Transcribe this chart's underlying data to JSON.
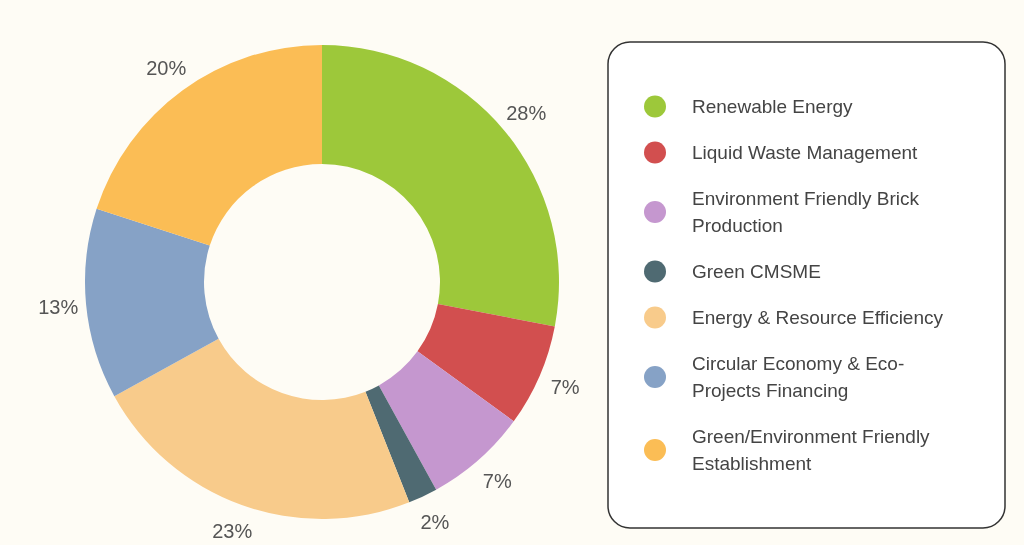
{
  "chart_data": {
    "type": "donut",
    "categories": [
      "Renewable Energy",
      "Liquid Waste Management",
      "Environment Friendly Brick Production",
      "Green CMSME",
      "Energy & Resource Efficiency",
      "Circular Economy & Eco-Projects Financing",
      "Green/Environment Friendly Establishment"
    ],
    "values": [
      28,
      7,
      7,
      2,
      23,
      13,
      20
    ],
    "colors": [
      "#9dc83a",
      "#d24f4f",
      "#c597cf",
      "#4f6a72",
      "#f8cb8b",
      "#86a2c6",
      "#fbbd55"
    ],
    "value_labels": [
      "28%",
      "7%",
      "7%",
      "2%",
      "23%",
      "13%",
      "20%"
    ],
    "legend": "right"
  }
}
